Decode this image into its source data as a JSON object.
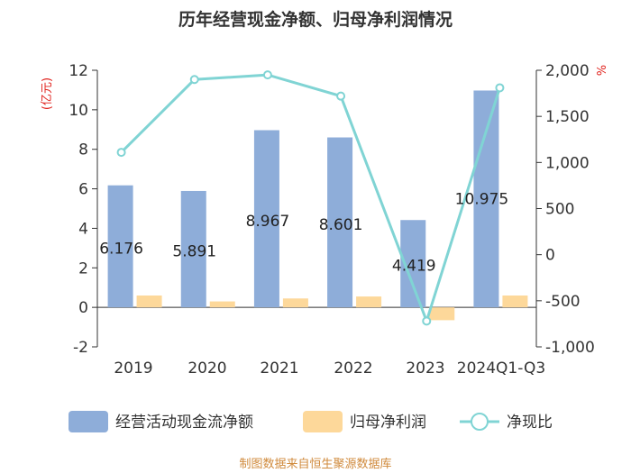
{
  "chart_data": {
    "type": "bar+line",
    "title": "历年经营现金净额、归母净利润情况",
    "categories": [
      "2019",
      "2020",
      "2021",
      "2022",
      "2023",
      "2024Q1-Q3"
    ],
    "series": [
      {
        "name": "经营活动现金流净额",
        "type": "bar",
        "axis": "left",
        "color": "#8eadd9",
        "values": [
          6.176,
          5.891,
          8.967,
          8.601,
          4.419,
          10.975
        ]
      },
      {
        "name": "归母净利润",
        "type": "bar",
        "axis": "left",
        "color": "#fdd89a",
        "values": [
          0.6,
          0.3,
          0.45,
          0.55,
          -0.65,
          0.6
        ]
      },
      {
        "name": "净现比",
        "type": "line",
        "axis": "right",
        "color": "#80d4d4",
        "values": [
          1110,
          1900,
          1950,
          1720,
          -720,
          1810
        ]
      }
    ],
    "data_labels": [
      "6.176",
      "5.891",
      "8.967",
      "8.601",
      "4.419",
      "10.975"
    ],
    "left_axis": {
      "label": "(亿元)",
      "min": -2,
      "max": 12,
      "ticks": [
        "-2",
        "0",
        "2",
        "4",
        "6",
        "8",
        "10",
        "12"
      ]
    },
    "right_axis": {
      "label": "%",
      "min": -1000,
      "max": 2000,
      "ticks": [
        "-1,000",
        "-500",
        "0",
        "500",
        "1,000",
        "1,500",
        "2,000"
      ]
    },
    "legend": {
      "position": "bottom",
      "items": [
        "经营活动现金流净额",
        "归母净利润",
        "净现比"
      ]
    },
    "source": "制图数据来自恒生聚源数据库"
  }
}
